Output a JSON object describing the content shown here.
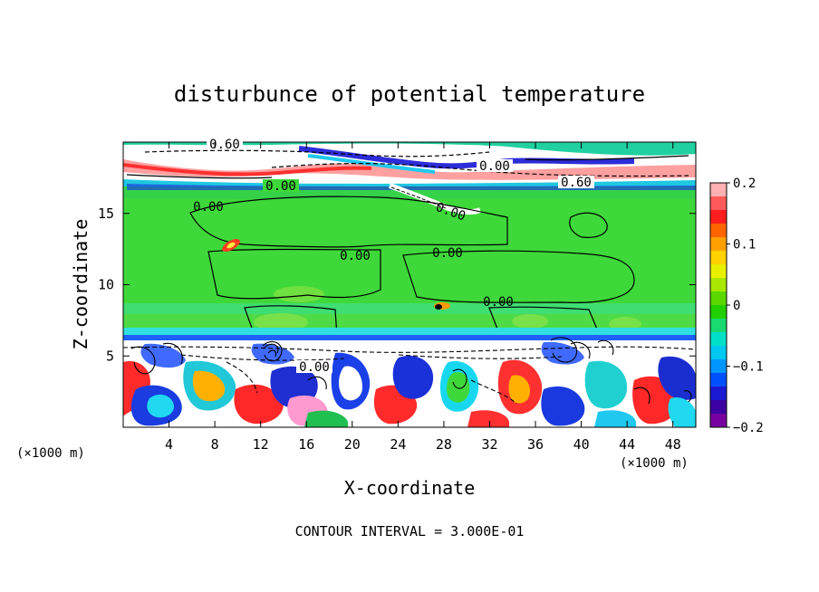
{
  "chart_data": {
    "type": "heatmap",
    "title": "disturbunce of potential temperature",
    "xlabel": "X-coordinate",
    "ylabel": "Z-coordinate",
    "x_unit": "(×1000 m)",
    "z_unit": "(×1000 m)",
    "xlim": [
      0,
      50
    ],
    "ylim": [
      0,
      20
    ],
    "x_ticks": [
      4,
      8,
      12,
      16,
      20,
      24,
      28,
      32,
      36,
      40,
      44,
      48
    ],
    "y_ticks": [
      5,
      10,
      15
    ],
    "colorbar": {
      "range": [
        -0.2,
        0.2
      ],
      "ticks": [
        "0.2",
        "0.1",
        "0",
        "−0.1",
        "−0.2"
      ],
      "tick_values": [
        0.2,
        0.1,
        0,
        -0.1,
        -0.2
      ],
      "colors": [
        "#ffb0b0",
        "#ff5a5a",
        "#ff1e1e",
        "#ff6400",
        "#ffa000",
        "#ffd200",
        "#e8f000",
        "#a8e800",
        "#5ad800",
        "#22d000",
        "#18d870",
        "#00e0c8",
        "#00c8f0",
        "#0096ff",
        "#0050ff",
        "#1a1ad2",
        "#3c00a0",
        "#7800a0"
      ]
    },
    "contour_labels": [
      "0.60",
      "0.00",
      "0.00",
      "0.60",
      "0.00",
      "0.00",
      "0.00",
      "0.00",
      "0.00",
      "0.00"
    ],
    "footer": "CONTOUR INTERVAL = 3.000E-01"
  },
  "colors": {
    "green": "#3ed83a",
    "green_light": "#52e05a",
    "cyan": "#30e0e0",
    "blue": "#1428d8",
    "white": "#ffffff",
    "red": "#ff2020",
    "orange": "#ff9a00"
  }
}
